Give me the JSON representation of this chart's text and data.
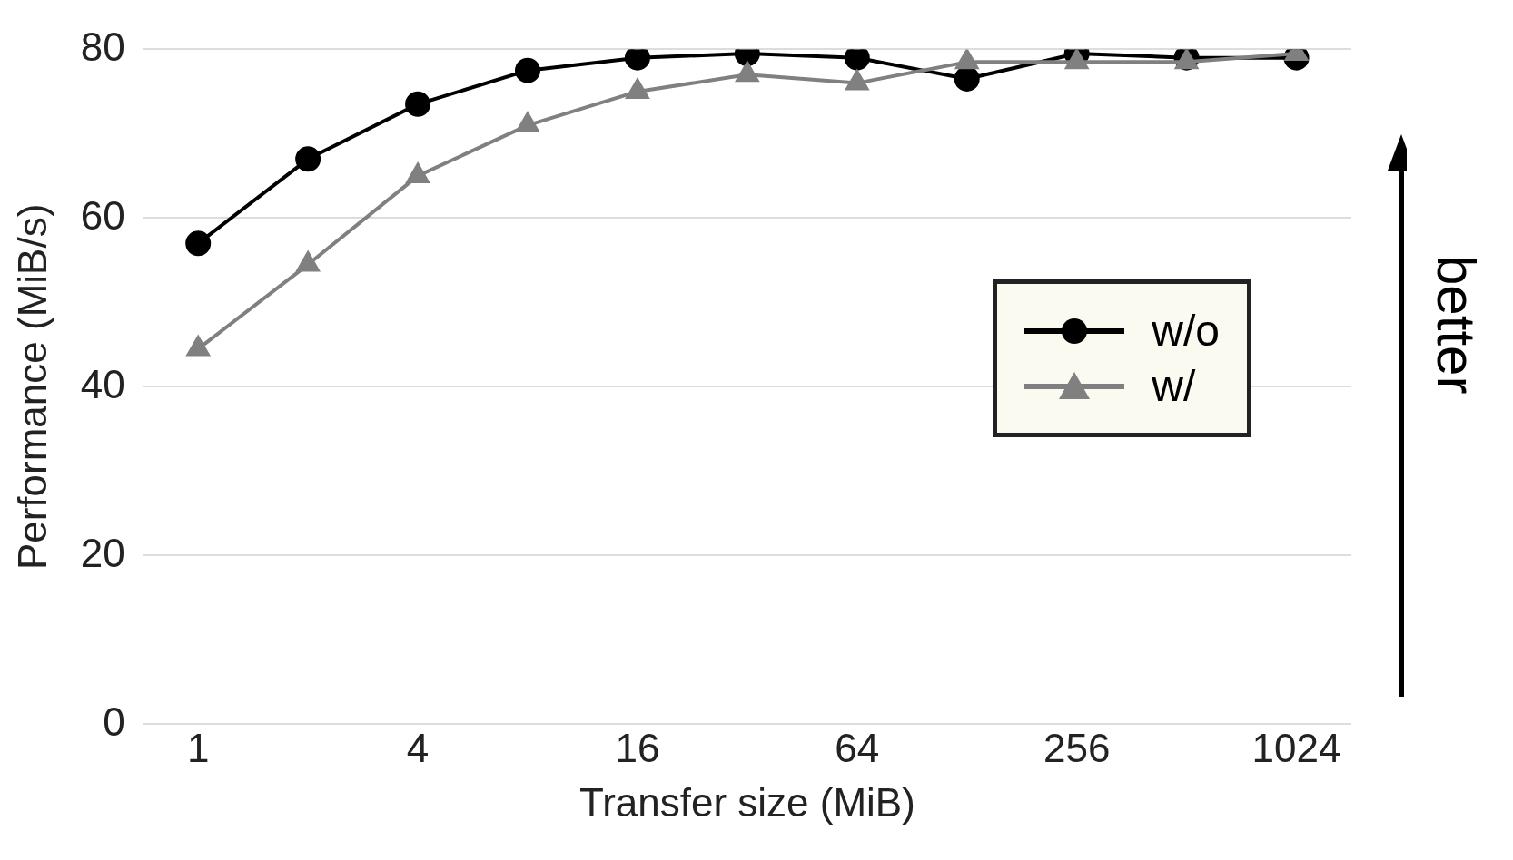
{
  "chart_data": {
    "type": "line",
    "xlabel": "Transfer size (MiB)",
    "ylabel": "Performance (MiB/s)",
    "categories": [
      "1",
      null,
      "4",
      null,
      "16",
      null,
      "64",
      null,
      "256",
      null,
      "1024"
    ],
    "series": [
      {
        "name": "w/o",
        "color": "#000000",
        "marker": "circle",
        "values": [
          57,
          67,
          73.5,
          77.5,
          79,
          79.5,
          79,
          76.5,
          79.5,
          79,
          79
        ]
      },
      {
        "name": "w/",
        "color": "#808080",
        "marker": "triangle",
        "values": [
          44.5,
          54.5,
          65,
          71,
          75,
          77,
          76,
          78.5,
          78.5,
          78.5,
          79.5
        ]
      }
    ],
    "ylim": [
      0,
      80
    ],
    "yticks": [
      0,
      20,
      40,
      60,
      80
    ],
    "grid": "y",
    "legend": "right",
    "annotations": [
      "better"
    ]
  }
}
